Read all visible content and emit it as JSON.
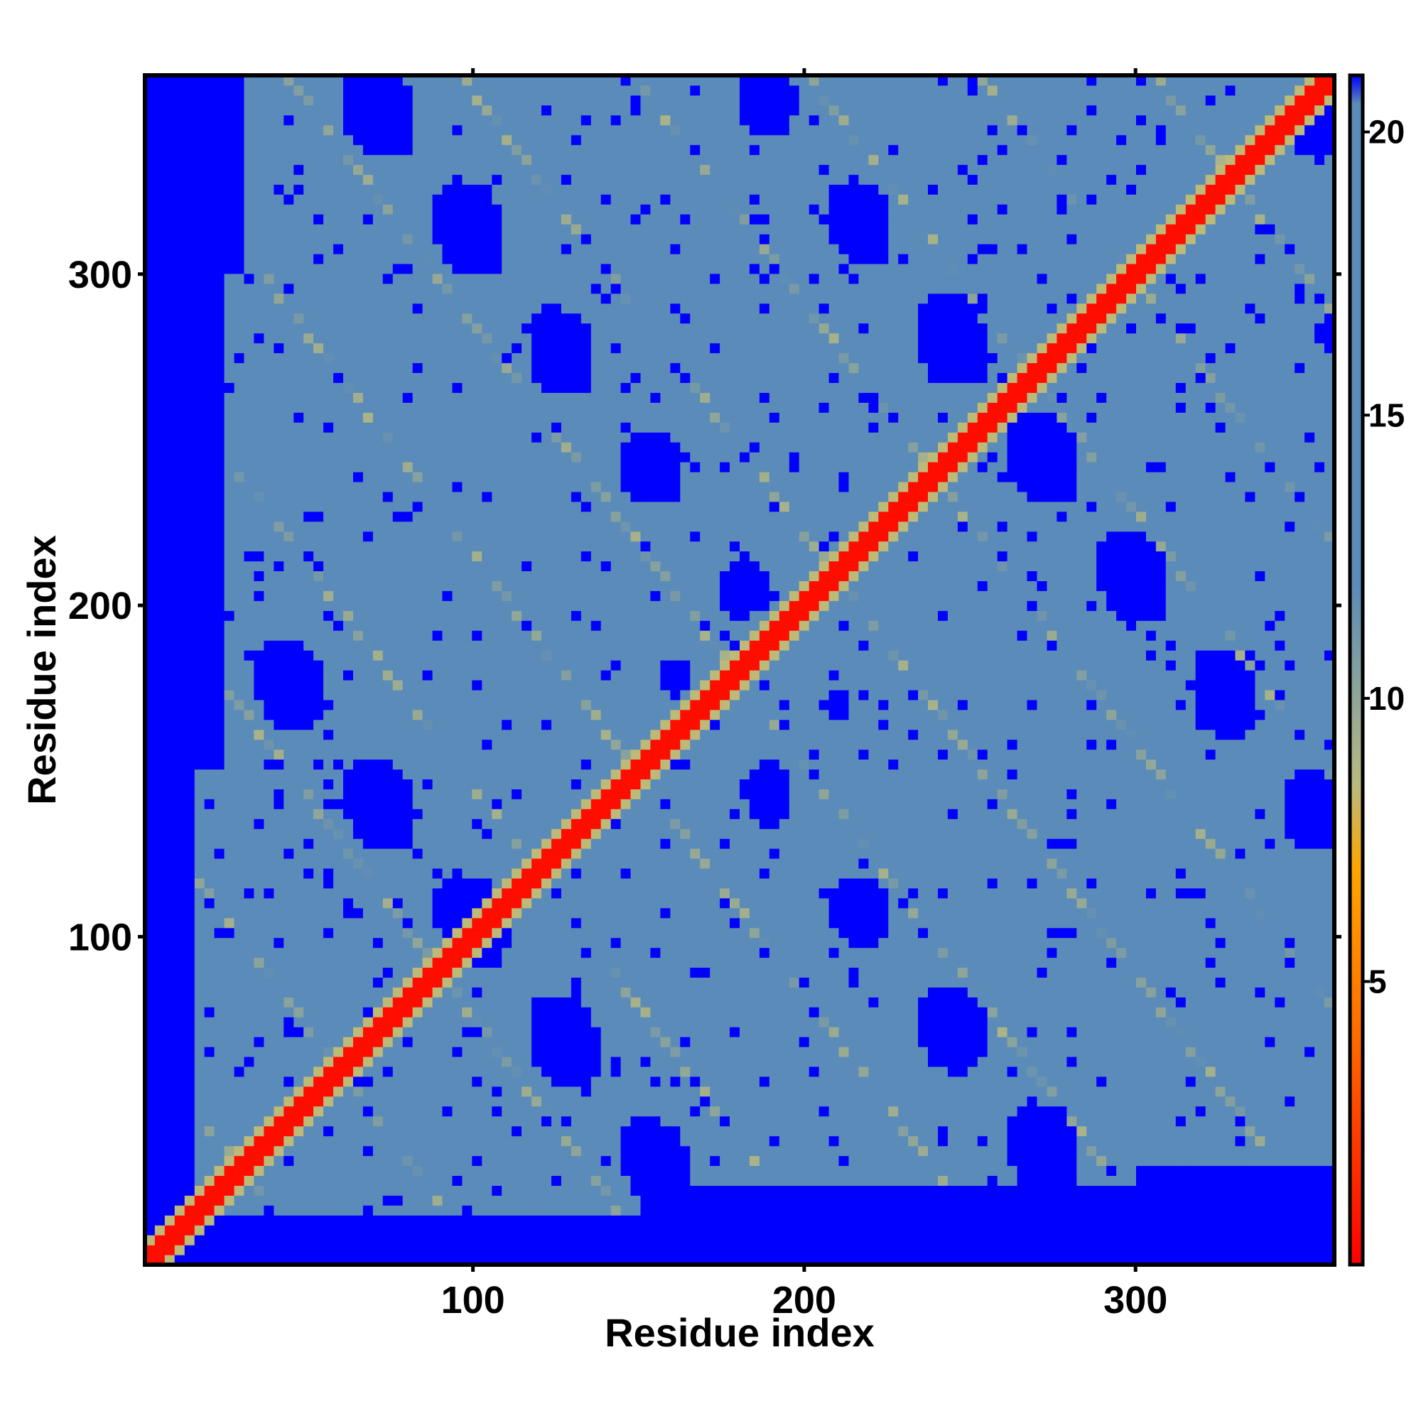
{
  "chart_data": {
    "type": "heatmap",
    "title": "",
    "xlabel": "Residue index",
    "ylabel": "Residue index",
    "xlim": [
      1,
      360
    ],
    "ylim": [
      1,
      360
    ],
    "x_ticks": [
      100,
      200,
      300
    ],
    "y_ticks": [
      100,
      200,
      300
    ],
    "x_tick_labels": [
      "100",
      "200",
      "300"
    ],
    "y_tick_labels": [
      "100",
      "200",
      "300"
    ],
    "colorbar": {
      "range": [
        0,
        21
      ],
      "ticks": [
        5,
        10,
        15,
        20
      ],
      "tick_labels": [
        "5",
        "10",
        "15",
        "20"
      ],
      "stops": [
        {
          "value": 0,
          "color": "#ff0000"
        },
        {
          "value": 4,
          "color": "#ff6a00"
        },
        {
          "value": 7,
          "color": "#ffa500"
        },
        {
          "value": 8.5,
          "color": "#b8ba80"
        },
        {
          "value": 12,
          "color": "#5b8bb8"
        },
        {
          "value": 20.5,
          "color": "#5b8bb8"
        },
        {
          "value": 21,
          "color": "#0000ff"
        }
      ]
    },
    "description_values": {
      "diagonal_distance": 0,
      "background_max_distance": 21
    }
  }
}
